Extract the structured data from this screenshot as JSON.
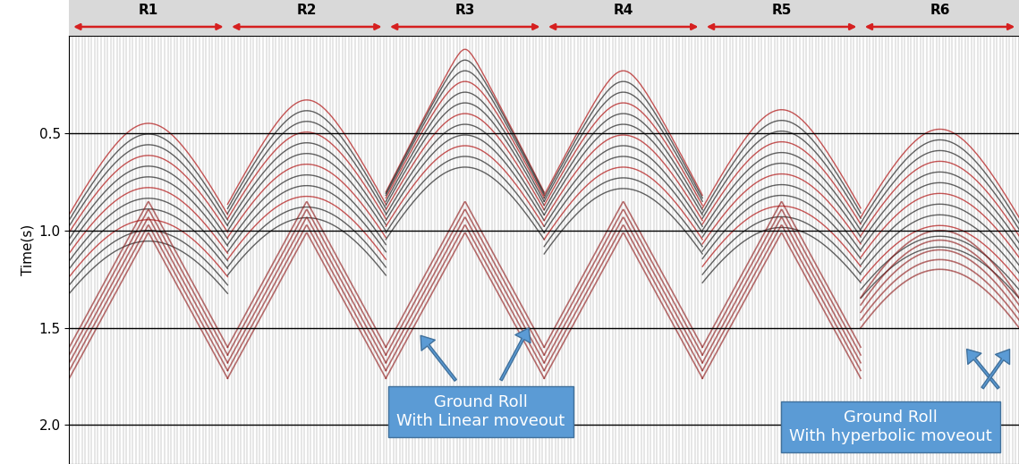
{
  "chart_data": {
    "type": "seismic_gather",
    "ylabel": "Time(s)",
    "ylim": [
      2.2,
      0
    ],
    "yticks": [
      0.5,
      1.0,
      1.5,
      2.0
    ],
    "grid": true,
    "tick_labels": "y",
    "records": [
      {
        "label": "R1",
        "apex_time": 0.45
      },
      {
        "label": "R2",
        "apex_time": 0.33
      },
      {
        "label": "R3",
        "apex_time": 0.07
      },
      {
        "label": "R4",
        "apex_time": 0.18
      },
      {
        "label": "R5",
        "apex_time": 0.38
      },
      {
        "label": "R6",
        "apex_time": 0.48
      }
    ],
    "annotations": [
      {
        "text": "Ground Roll\nWith Linear moveout"
      },
      {
        "text": "Ground Roll\nWith hyperbolic moveout"
      }
    ]
  }
}
